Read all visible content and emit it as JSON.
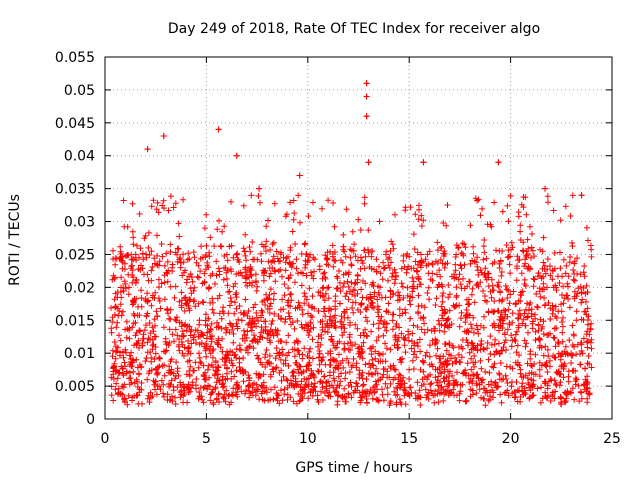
{
  "chart_data": {
    "type": "scatter",
    "title": "Day 249 of 2018, Rate Of TEC Index for receiver algo",
    "xlabel": "GPS time / hours",
    "ylabel": "ROTI / TECUs",
    "xlim": [
      0,
      25
    ],
    "ylim": [
      0,
      0.055
    ],
    "xticks": [
      "0",
      "5",
      "10",
      "15",
      "20",
      "25"
    ],
    "yticks": [
      "0",
      "0.005",
      "0.01",
      "0.015",
      "0.02",
      "0.025",
      "0.03",
      "0.035",
      "0.04",
      "0.045",
      "0.05",
      "0.055"
    ],
    "grid": true,
    "marker": "+",
    "series_color": "#ff0000",
    "x_range_of_data": [
      0.3,
      24.0
    ],
    "typical_band": [
      0.003,
      0.03
    ],
    "notable_points": [
      {
        "x": 2.1,
        "y": 0.041
      },
      {
        "x": 2.9,
        "y": 0.043
      },
      {
        "x": 5.6,
        "y": 0.044
      },
      {
        "x": 6.5,
        "y": 0.04
      },
      {
        "x": 7.6,
        "y": 0.035
      },
      {
        "x": 9.6,
        "y": 0.037
      },
      {
        "x": 12.9,
        "y": 0.051
      },
      {
        "x": 12.9,
        "y": 0.049
      },
      {
        "x": 12.9,
        "y": 0.046
      },
      {
        "x": 13.0,
        "y": 0.039
      },
      {
        "x": 15.7,
        "y": 0.039
      },
      {
        "x": 19.4,
        "y": 0.039
      },
      {
        "x": 21.7,
        "y": 0.035
      },
      {
        "x": 23.5,
        "y": 0.034
      }
    ]
  }
}
